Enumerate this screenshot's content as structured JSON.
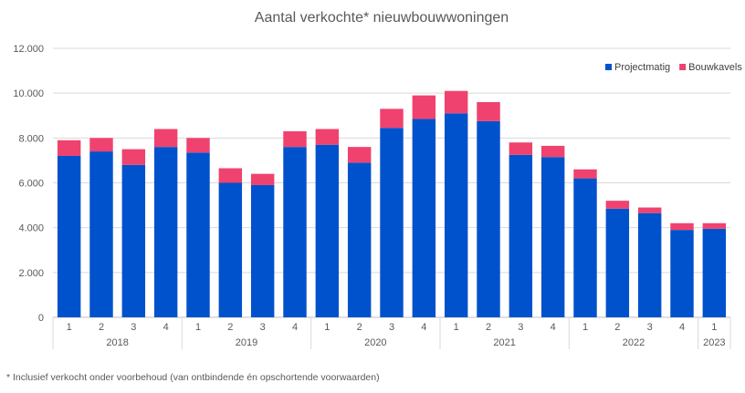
{
  "chart_data": {
    "type": "bar",
    "stacked": true,
    "title": "Aantal verkochte* nieuwbouwwoningen",
    "xlabel": "",
    "ylabel": "",
    "ylim": [
      0,
      12000
    ],
    "yticks": [
      0,
      2000,
      4000,
      6000,
      8000,
      10000,
      12000
    ],
    "ytick_labels": [
      "0",
      "2.000",
      "4.000",
      "6.000",
      "8.000",
      "10.000",
      "12.000"
    ],
    "grid": true,
    "legend_position": "top-right",
    "categories": [
      "1",
      "2",
      "3",
      "4",
      "1",
      "2",
      "3",
      "4",
      "1",
      "2",
      "3",
      "4",
      "1",
      "2",
      "3",
      "4",
      "1",
      "2",
      "3",
      "4",
      "1"
    ],
    "years": [
      {
        "label": "2018",
        "count": 4
      },
      {
        "label": "2019",
        "count": 4
      },
      {
        "label": "2020",
        "count": 4
      },
      {
        "label": "2021",
        "count": 4
      },
      {
        "label": "2022",
        "count": 4
      },
      {
        "label": "2023",
        "count": 1
      }
    ],
    "series": [
      {
        "name": "Projectmatig",
        "color": "#0052CC",
        "values": [
          7200,
          7400,
          6800,
          7600,
          7350,
          6000,
          5900,
          7600,
          7700,
          6900,
          8450,
          8850,
          9100,
          8750,
          7250,
          7150,
          6200,
          4850,
          4650,
          3900,
          3950
        ]
      },
      {
        "name": "Bouwkavels",
        "color": "#F0426E",
        "values": [
          700,
          600,
          700,
          800,
          650,
          650,
          500,
          700,
          700,
          700,
          850,
          1050,
          1000,
          850,
          550,
          500,
          400,
          350,
          250,
          300,
          250
        ]
      }
    ]
  },
  "footnote": "* Inclusief verkocht onder voorbehoud (van ontbindende én opschortende voorwaarden)"
}
